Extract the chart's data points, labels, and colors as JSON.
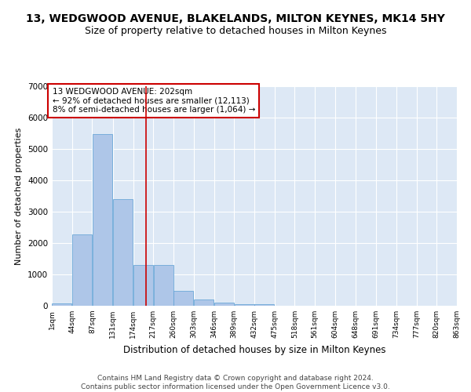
{
  "title1": "13, WEDGWOOD AVENUE, BLAKELANDS, MILTON KEYNES, MK14 5HY",
  "title2": "Size of property relative to detached houses in Milton Keynes",
  "xlabel": "Distribution of detached houses by size in Milton Keynes",
  "ylabel": "Number of detached properties",
  "bar_edges": [
    1,
    44,
    87,
    131,
    174,
    217,
    260,
    303,
    346,
    389,
    432,
    475,
    518,
    561,
    604,
    648,
    691,
    734,
    777,
    820,
    863
  ],
  "bar_heights": [
    75,
    2280,
    5480,
    3400,
    1300,
    1300,
    480,
    200,
    100,
    60,
    40,
    0,
    0,
    0,
    0,
    0,
    0,
    0,
    0,
    0
  ],
  "tick_labels": [
    "1sqm",
    "44sqm",
    "87sqm",
    "131sqm",
    "174sqm",
    "217sqm",
    "260sqm",
    "303sqm",
    "346sqm",
    "389sqm",
    "432sqm",
    "475sqm",
    "518sqm",
    "561sqm",
    "604sqm",
    "648sqm",
    "691sqm",
    "734sqm",
    "777sqm",
    "820sqm",
    "863sqm"
  ],
  "bar_color": "#aec6e8",
  "bar_edge_color": "#5a9fd4",
  "background_color": "#dde8f5",
  "annotation_text": "13 WEDGWOOD AVENUE: 202sqm\n← 92% of detached houses are smaller (12,113)\n8% of semi-detached houses are larger (1,064) →",
  "vline_x": 202,
  "vline_color": "#cc0000",
  "ylim": [
    0,
    7000
  ],
  "yticks": [
    0,
    1000,
    2000,
    3000,
    4000,
    5000,
    6000,
    7000
  ],
  "footer": "Contains HM Land Registry data © Crown copyright and database right 2024.\nContains public sector information licensed under the Open Government Licence v3.0.",
  "title1_fontsize": 10,
  "title2_fontsize": 9,
  "xlabel_fontsize": 8.5,
  "ylabel_fontsize": 8,
  "annotation_fontsize": 7.5,
  "footer_fontsize": 6.5
}
